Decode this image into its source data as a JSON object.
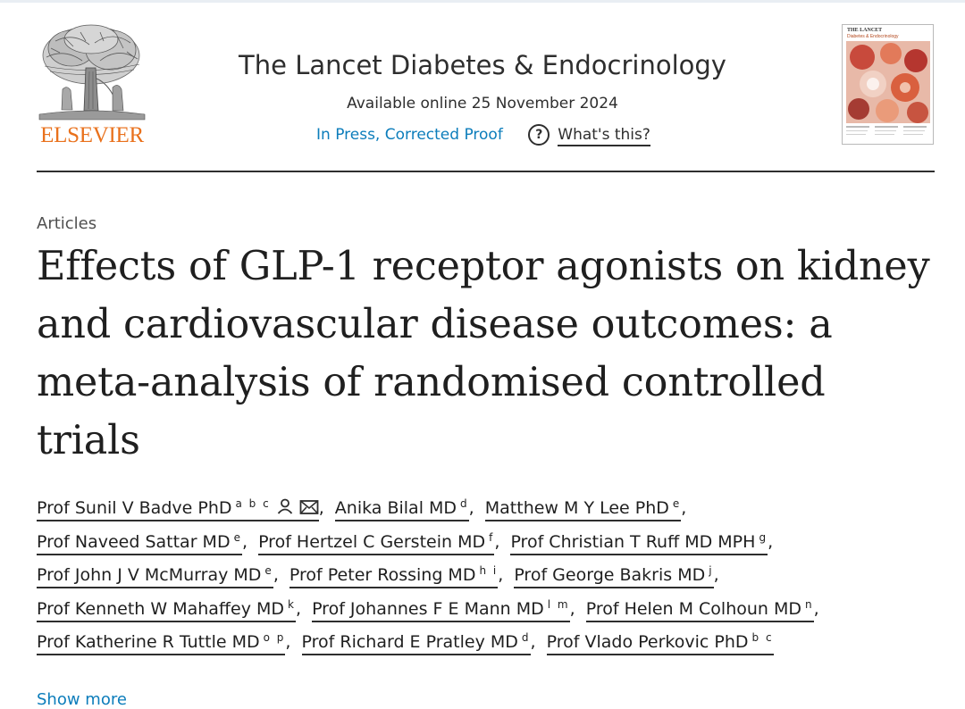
{
  "header": {
    "publisher_logo_text": "ELSEVIER",
    "journal_title": "The Lancet Diabetes & Endocrinology",
    "available_online": "Available online 25 November 2024",
    "status_link": "In Press, Corrected Proof",
    "help_label": "What's this?",
    "help_icon": "question-circle-icon",
    "cover": {
      "line1": "THE LANCET",
      "line2": "Diabetes & Endocrinology"
    }
  },
  "article": {
    "type": "Articles",
    "title": "Effects of GLP-1 receptor agonists on kidney and cardiovascular disease outcomes: a meta-analysis of randomised controlled trials",
    "authors": [
      {
        "name": "Prof Sunil V Badve PhD",
        "affiliations": "a b c",
        "icons": [
          "person-icon",
          "envelope-icon"
        ]
      },
      {
        "name": "Anika Bilal MD",
        "affiliations": "d"
      },
      {
        "name": "Matthew M Y Lee PhD",
        "affiliations": "e"
      },
      {
        "name": "Prof Naveed Sattar MD",
        "affiliations": "e"
      },
      {
        "name": "Prof Hertzel C Gerstein MD",
        "affiliations": "f"
      },
      {
        "name": "Prof Christian T Ruff MD MPH",
        "affiliations": "g"
      },
      {
        "name": "Prof John J V McMurray MD",
        "affiliations": "e"
      },
      {
        "name": "Prof Peter Rossing MD",
        "affiliations": "h i"
      },
      {
        "name": "Prof George Bakris MD",
        "affiliations": "j"
      },
      {
        "name": "Prof Kenneth W Mahaffey MD",
        "affiliations": "k"
      },
      {
        "name": "Prof Johannes F E Mann MD",
        "affiliations": "l m"
      },
      {
        "name": "Prof Helen M Colhoun MD",
        "affiliations": "n"
      },
      {
        "name": "Prof Katherine R Tuttle MD",
        "affiliations": "o p"
      },
      {
        "name": "Prof Richard E Pratley MD",
        "affiliations": "d"
      },
      {
        "name": "Prof Vlado Perkovic PhD",
        "affiliations": "b c"
      }
    ],
    "show_more": "Show more"
  },
  "colors": {
    "publisher_orange": "#e9711c",
    "link_blue": "#0c7dbb",
    "text": "#1f1f1f",
    "rule": "#2e2e2e"
  }
}
